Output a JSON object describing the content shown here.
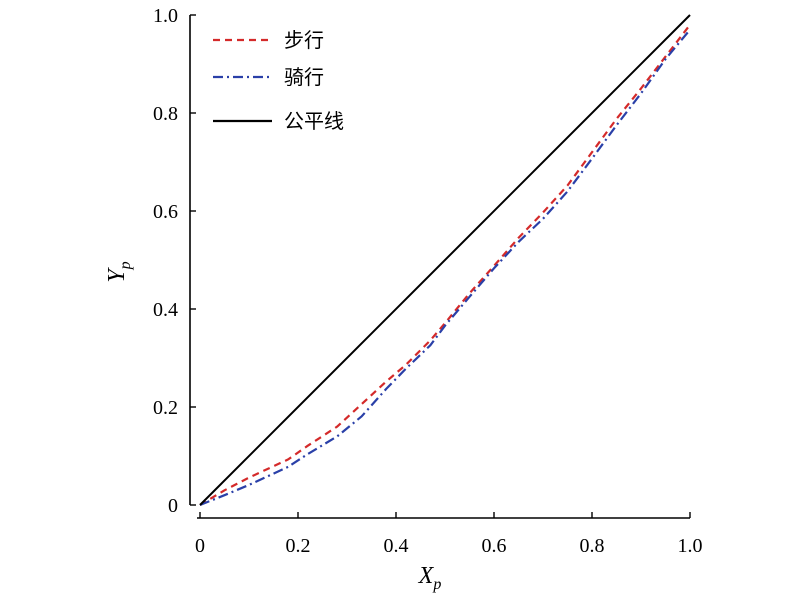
{
  "chart_data": {
    "type": "line",
    "xlabel": "X",
    "xlabel_sub": "p",
    "ylabel": "Y",
    "ylabel_sub": "p",
    "xlim": [
      0,
      1
    ],
    "ylim": [
      0,
      1
    ],
    "xticks": [
      0,
      0.2,
      0.4,
      0.6,
      0.8,
      1.0
    ],
    "xtick_labels": [
      "0",
      "0.2",
      "0.4",
      "0.6",
      "0.8",
      "1.0"
    ],
    "yticks": [
      0,
      0.2,
      0.4,
      0.6,
      0.8,
      1.0
    ],
    "ytick_labels": [
      "0",
      "0.2",
      "0.4",
      "0.6",
      "0.8",
      "1.0"
    ],
    "grid": false,
    "legend_position": "top-left",
    "series": [
      {
        "name": "步行",
        "color": "#d42a2a",
        "dash": "dashed",
        "x": [
          0,
          0.05,
          0.1,
          0.18,
          0.22,
          0.28,
          0.33,
          0.38,
          0.42,
          0.47,
          0.5,
          0.55,
          0.6,
          0.65,
          0.7,
          0.75,
          0.8,
          0.85,
          0.9,
          0.95,
          1.0
        ],
        "y": [
          0,
          0.03,
          0.056,
          0.093,
          0.121,
          0.16,
          0.206,
          0.252,
          0.286,
          0.336,
          0.371,
          0.432,
          0.488,
          0.545,
          0.597,
          0.652,
          0.72,
          0.788,
          0.85,
          0.915,
          0.98
        ]
      },
      {
        "name": "骑行",
        "color": "#2a40a8",
        "dash": "dashdot",
        "x": [
          0,
          0.05,
          0.1,
          0.18,
          0.22,
          0.28,
          0.33,
          0.38,
          0.42,
          0.47,
          0.5,
          0.55,
          0.6,
          0.65,
          0.7,
          0.75,
          0.8,
          0.85,
          0.9,
          0.95,
          1.0
        ],
        "y": [
          0,
          0.02,
          0.041,
          0.078,
          0.104,
          0.14,
          0.181,
          0.237,
          0.278,
          0.326,
          0.366,
          0.425,
          0.483,
          0.537,
          0.584,
          0.64,
          0.707,
          0.775,
          0.84,
          0.91,
          0.97
        ]
      },
      {
        "name": "公平线",
        "color": "#000000",
        "dash": "solid",
        "x": [
          0,
          1
        ],
        "y": [
          0,
          1
        ]
      }
    ]
  }
}
